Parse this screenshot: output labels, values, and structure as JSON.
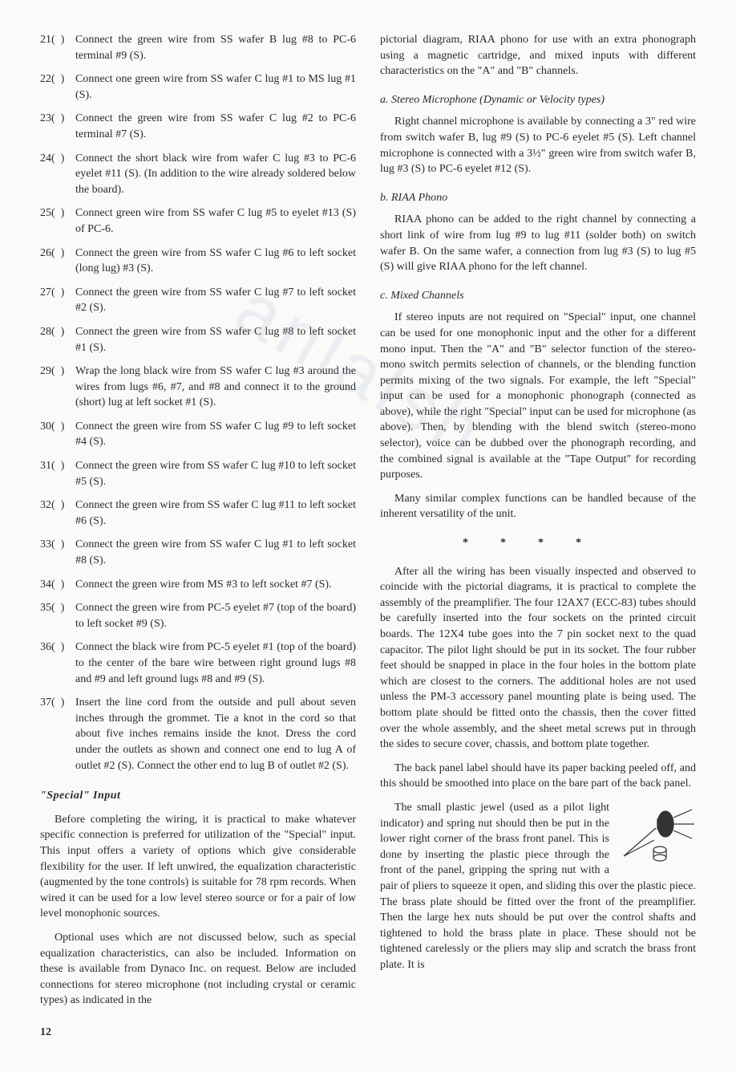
{
  "steps": [
    {
      "n": "21",
      "t": "Connect the green wire from SS wafer B lug #8 to PC-6 terminal #9 (S)."
    },
    {
      "n": "22",
      "t": "Connect one green wire from SS wafer C lug #1 to MS lug #1 (S)."
    },
    {
      "n": "23",
      "t": "Connect the green wire from SS wafer C lug #2 to PC-6 terminal #7 (S)."
    },
    {
      "n": "24",
      "t": "Connect the short black wire from wafer C lug #3 to PC-6 eyelet #11 (S). (In addition to the wire already soldered below the board)."
    },
    {
      "n": "25",
      "t": "Connect green wire from SS wafer C lug #5 to eyelet #13 (S) of PC-6."
    },
    {
      "n": "26",
      "t": "Connect the green wire from SS wafer C lug #6 to left socket (long lug) #3 (S)."
    },
    {
      "n": "27",
      "t": "Connect the green wire from SS wafer C lug #7 to left socket #2 (S)."
    },
    {
      "n": "28",
      "t": "Connect the green wire from SS wafer C lug #8 to left socket #1 (S)."
    },
    {
      "n": "29",
      "t": "Wrap the long black wire from SS wafer C lug #3 around the wires from lugs #6, #7, and #8 and connect it to the ground (short) lug at left socket #1 (S)."
    },
    {
      "n": "30",
      "t": "Connect the green wire from SS wafer C lug #9 to left socket #4 (S)."
    },
    {
      "n": "31",
      "t": "Connect the green wire from SS wafer C lug #10 to left socket #5 (S)."
    },
    {
      "n": "32",
      "t": "Connect the green wire from SS wafer C lug #11 to left socket #6 (S)."
    },
    {
      "n": "33",
      "t": "Connect the green wire from SS wafer C lug #1 to left socket #8 (S)."
    },
    {
      "n": "34",
      "t": "Connect the green wire from MS #3 to left socket #7 (S)."
    },
    {
      "n": "35",
      "t": "Connect the green wire from PC-5 eyelet #7 (top of the board) to left socket #9 (S)."
    },
    {
      "n": "36",
      "t": "Connect the black wire from PC-5 eyelet #1 (top of the board) to the center of the bare wire between right ground lugs #8 and #9 and left ground lugs #8 and #9 (S)."
    },
    {
      "n": "37",
      "t": "Insert the line cord from the outside and pull about seven inches through the grommet. Tie a knot in the cord so that about five inches remains inside the knot. Dress the cord under the outlets as shown and connect one end to lug A of outlet #2 (S). Connect the other end to lug B of outlet #2 (S)."
    }
  ],
  "special_heading": "\"Special\" Input",
  "special_p1": "Before completing the wiring, it is practical to make whatever specific connection is preferred for utilization of the \"Special\" input. This input offers a variety of options which give considerable flexibility for the user. If left unwired, the equalization characteristic (augmented by the tone controls) is suitable for 78 rpm records. When wired it can be used for a low level stereo source or for a pair of low level monophonic sources.",
  "special_p2": "Optional uses which are not discussed below, such as special equalization characteristics, can also be included. Information on these is available from Dynaco Inc. on request. Below are included connections for stereo microphone (not including crystal or ceramic types) as indicated in the",
  "right_intro": "pictorial diagram, RIAA phono for use with an extra phonograph using a magnetic cartridge, and mixed inputs with different characteristics on the \"A\" and \"B\" channels.",
  "sec_a_h": "a. Stereo Microphone (Dynamic or Velocity types)",
  "sec_a_p": "Right channel microphone is available by connecting a 3\" red wire from switch wafer B, lug #9 (S) to PC-6 eyelet #5 (S). Left channel microphone is connected with a 3½\" green wire from switch wafer B, lug #3 (S) to PC-6 eyelet #12 (S).",
  "sec_b_h": "b. RIAA Phono",
  "sec_b_p": "RIAA phono can be added to the right channel by connecting a short link of wire from lug #9 to lug #11 (solder both) on switch wafer B. On the same wafer, a connection from lug #3 (S) to lug #5 (S) will give RIAA phono for the left channel.",
  "sec_c_h": "c. Mixed Channels",
  "sec_c_p1": "If stereo inputs are not required on \"Special\" input, one channel can be used for one monophonic input and the other for a different mono input. Then the \"A\" and \"B\" selector function of the stereo-mono switch permits selection of channels, or the blending function permits mixing of the two signals. For example, the left \"Special\" input can be used for a monophonic phonograph (connected as above), while the right \"Special\" input can be used for microphone (as above). Then, by blending with the blend switch (stereo-mono selector), voice can be dubbed over the phonograph recording, and the combined signal is available at the \"Tape Output\" for recording purposes.",
  "sec_c_p2": "Many similar complex functions can be handled because of the inherent versatility of the unit.",
  "assembly_p1": "After all the wiring has been visually inspected and observed to coincide with the pictorial diagrams, it is practical to complete the assembly of the preamplifier. The four 12AX7 (ECC-83) tubes should be carefully inserted into the four sockets on the printed circuit boards. The 12X4 tube goes into the 7 pin socket next to the quad capacitor. The pilot light should be put in its socket. The four rubber feet should be snapped in place in the four holes in the bottom plate which are closest to the corners. The additional holes are not used unless the PM-3 accessory panel mounting plate is being used. The bottom plate should be fitted onto the chassis, then the cover fitted over the whole assembly, and the sheet metal screws put in through the sides to secure cover, chassis, and bottom plate together.",
  "assembly_p2": "The back panel label should have its paper backing peeled off, and this should be smoothed into place on the bare part of the back panel.",
  "assembly_p3": "The small plastic jewel (used as a pilot light indicator) and spring nut should then be put in the lower right corner of the brass front panel. This is done by inserting the plastic piece through the front of the panel, gripping the spring nut with a pair of pliers to squeeze it open, and sliding this over the plastic piece. The brass plate should be fitted over the front of the preamplifier. Then the large hex nuts should be put over the control shafts and tightened to hold the brass plate in place. These should not be tightened carelessly or the pliers may slip and scratch the brass front plate. It is",
  "page_num": "12",
  "watermark": "anlalsh"
}
